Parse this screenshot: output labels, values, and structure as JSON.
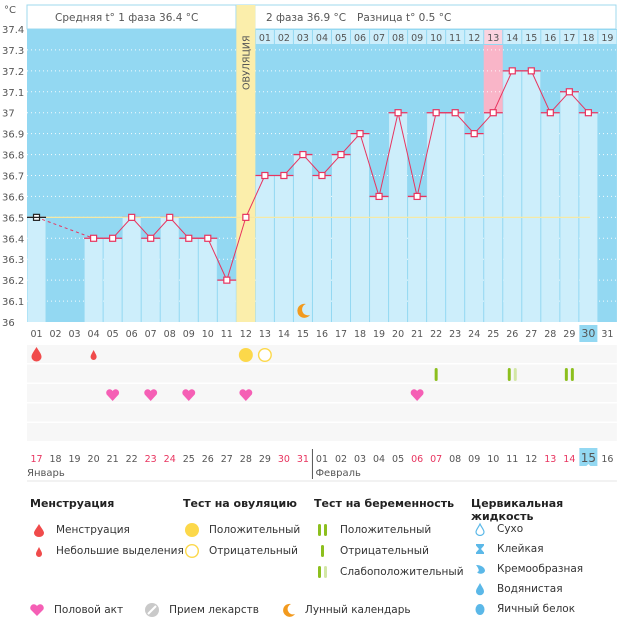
{
  "header": {
    "unit_label": "°C",
    "phase1_label": "Средняя t° 1 фаза 36.4 °C",
    "phase2_label": "2 фаза 36.9 °C",
    "diff_label": "Разница t° 0.5 °C",
    "ovulation_label": "ОВУЛЯЦИЯ"
  },
  "colors": {
    "plot_bg": "#93d8f2",
    "bar_fill": "#cdeefb",
    "ovulation_band": "#fbeeab",
    "highlight_pink": "#f9b5c8",
    "line": "#e8345f",
    "coverline": "#f5e9a6",
    "today": "#93d8f2",
    "red_day": "#e8345f"
  },
  "chart_data": {
    "type": "line",
    "title": "Базальная температура",
    "ylabel": "°C",
    "ylim": [
      36.0,
      37.4
    ],
    "yticks": [
      "36",
      "36.1",
      "36.2",
      "36.3",
      "36.4",
      "36.5",
      "36.6",
      "36.7",
      "36.8",
      "36.9",
      "37",
      "37.1",
      "37.2",
      "37.3",
      "37.4"
    ],
    "cycle_days": [
      "01",
      "02",
      "03",
      "04",
      "05",
      "06",
      "07",
      "08",
      "09",
      "10",
      "11",
      "12",
      "13",
      "14",
      "15",
      "16",
      "17",
      "18",
      "19",
      "20",
      "21",
      "22",
      "23",
      "24",
      "25",
      "26",
      "27",
      "28",
      "29",
      "30",
      "31"
    ],
    "temperatures": [
      36.5,
      null,
      null,
      36.4,
      36.4,
      36.5,
      36.4,
      36.5,
      36.4,
      36.4,
      36.2,
      36.5,
      36.7,
      36.7,
      36.8,
      36.7,
      36.8,
      36.9,
      36.6,
      37.0,
      36.6,
      37.0,
      37.0,
      36.9,
      37.0,
      37.2,
      37.2,
      37.0,
      37.1,
      37.0,
      null
    ],
    "coverline": 36.5,
    "ovulation_day": 12,
    "phase2_days": [
      "01",
      "02",
      "03",
      "04",
      "05",
      "06",
      "07",
      "08",
      "09",
      "10",
      "11",
      "12",
      "13",
      "14",
      "15",
      "16",
      "17",
      "18",
      "19"
    ],
    "phase2_highlight_day": "13",
    "today_cycle_day": "30",
    "calendar_dates": [
      "17",
      "18",
      "19",
      "20",
      "21",
      "22",
      "23",
      "24",
      "25",
      "26",
      "27",
      "28",
      "29",
      "30",
      "31",
      "01",
      "02",
      "03",
      "04",
      "05",
      "06",
      "07",
      "08",
      "09",
      "10",
      "11",
      "12",
      "13",
      "14",
      "15",
      "16"
    ],
    "calendar_red": [
      0,
      6,
      7,
      13,
      14,
      20,
      21,
      27,
      28
    ],
    "calendar_today_index": 29,
    "month_labels": [
      {
        "label": "Январь",
        "start_index": 0
      },
      {
        "label": "Февраль",
        "start_index": 15
      }
    ],
    "markers": {
      "menstruation": [
        1
      ],
      "spotting": [
        4
      ],
      "ovulation_test_positive": [
        12
      ],
      "ovulation_test_negative": [
        13
      ],
      "pregnancy_test_negative": [
        22
      ],
      "pregnancy_test_weak_positive": [
        26
      ],
      "pregnancy_test_positive": [
        29
      ],
      "intercourse": [
        5,
        7,
        9,
        12,
        21
      ],
      "lunar": [
        15
      ]
    }
  },
  "legend": {
    "menstruation": {
      "title": "Менструация",
      "items": [
        "Менструация",
        "Небольшие выделения"
      ]
    },
    "ovulation_test": {
      "title": "Тест на овуляцию",
      "items": [
        "Положительный",
        "Отрицательный"
      ]
    },
    "pregnancy_test": {
      "title": "Тест на беременность",
      "items": [
        "Положительный",
        "Отрицательный",
        "Слабоположительный"
      ]
    },
    "cervical_fluid": {
      "title": "Цервикальная жидкость",
      "items": [
        "Сухо",
        "Клейкая",
        "Кремообразная",
        "Водянистая",
        "Яичный белок"
      ]
    },
    "other": [
      "Половой акт",
      "Прием лекарств",
      "Лунный календарь"
    ]
  }
}
